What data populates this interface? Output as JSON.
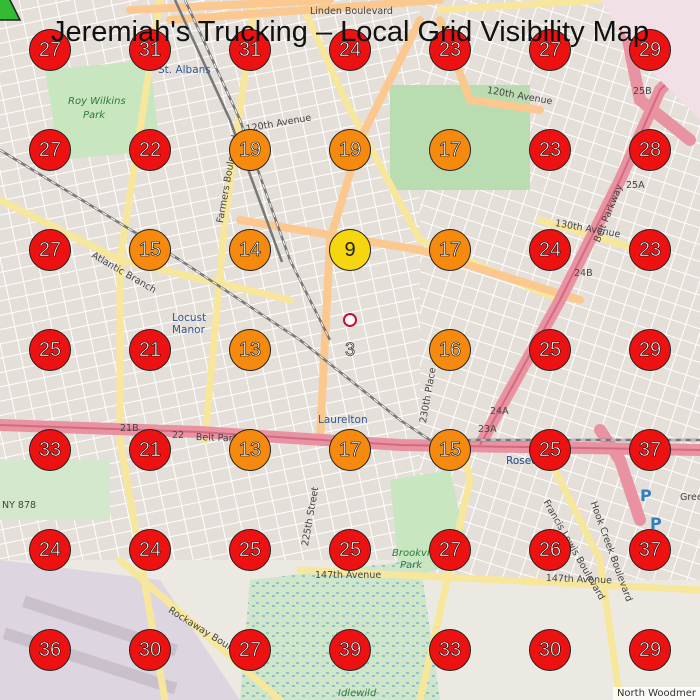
{
  "title": "Jeremiah's Trucking – Local Grid Visibility Map",
  "attribution": "North Woodmer",
  "vehicle": {
    "value": "3",
    "color": "#33bb33"
  },
  "colors": {
    "red": "#ee1111",
    "orange": "#f58a0e",
    "yellow": "#f5d60f"
  },
  "grid": [
    [
      27,
      31,
      31,
      24,
      23,
      27,
      29
    ],
    [
      27,
      22,
      19,
      19,
      17,
      23,
      28
    ],
    [
      27,
      15,
      14,
      9,
      17,
      24,
      23
    ],
    [
      25,
      21,
      13,
      null,
      16,
      25,
      29
    ],
    [
      33,
      21,
      13,
      17,
      15,
      25,
      37
    ],
    [
      24,
      24,
      25,
      25,
      27,
      26,
      37
    ],
    [
      36,
      30,
      27,
      39,
      33,
      30,
      29
    ]
  ],
  "map_labels": [
    {
      "text": "St. Albans",
      "kind": "blue"
    },
    {
      "text": "Roy Wilkins",
      "kind": "green"
    },
    {
      "text": "Park",
      "kind": "green"
    },
    {
      "text": "120th Avenue",
      "kind": "road"
    },
    {
      "text": "120th Avenue",
      "kind": "road"
    },
    {
      "text": "Locust",
      "kind": "blue"
    },
    {
      "text": "Manor",
      "kind": "blue"
    },
    {
      "text": "Laurelton",
      "kind": "blue"
    },
    {
      "text": "Atlantic Branch",
      "kind": "road"
    },
    {
      "text": "Belt Parkway",
      "kind": "road"
    },
    {
      "text": "Brookville",
      "kind": "green"
    },
    {
      "text": "Park",
      "kind": "green"
    },
    {
      "text": "Rosedale",
      "kind": "blue"
    },
    {
      "text": "147th Avenue",
      "kind": "road"
    },
    {
      "text": "147th Avenue",
      "kind": "road"
    },
    {
      "text": "Idlewild",
      "kind": "green"
    },
    {
      "text": "225th Street",
      "kind": "road"
    },
    {
      "text": "230th Place",
      "kind": "road"
    },
    {
      "text": "Francis Lewis Boulevard",
      "kind": "road"
    },
    {
      "text": "Hook Creek Boulevard",
      "kind": "road"
    },
    {
      "text": "Farmers Boulevard",
      "kind": "road"
    },
    {
      "text": "Rockaway Boulevard",
      "kind": "road"
    },
    {
      "text": "Linden Boulevard",
      "kind": "road"
    },
    {
      "text": "130th Avenue",
      "kind": "road"
    },
    {
      "text": "Belt Parkway",
      "kind": "road"
    },
    {
      "text": "NY 878",
      "kind": "road"
    },
    {
      "text": "Rose",
      "kind": "blue"
    },
    {
      "text": "24A",
      "kind": "road"
    },
    {
      "text": "24B",
      "kind": "road"
    },
    {
      "text": "23A",
      "kind": "road"
    },
    {
      "text": "25A",
      "kind": "road"
    },
    {
      "text": "25B",
      "kind": "road"
    },
    {
      "text": "21B",
      "kind": "road"
    },
    {
      "text": "22",
      "kind": "road"
    },
    {
      "text": "P",
      "kind": "blue"
    },
    {
      "text": "P",
      "kind": "blue"
    },
    {
      "text": "Gree",
      "kind": "road"
    }
  ]
}
